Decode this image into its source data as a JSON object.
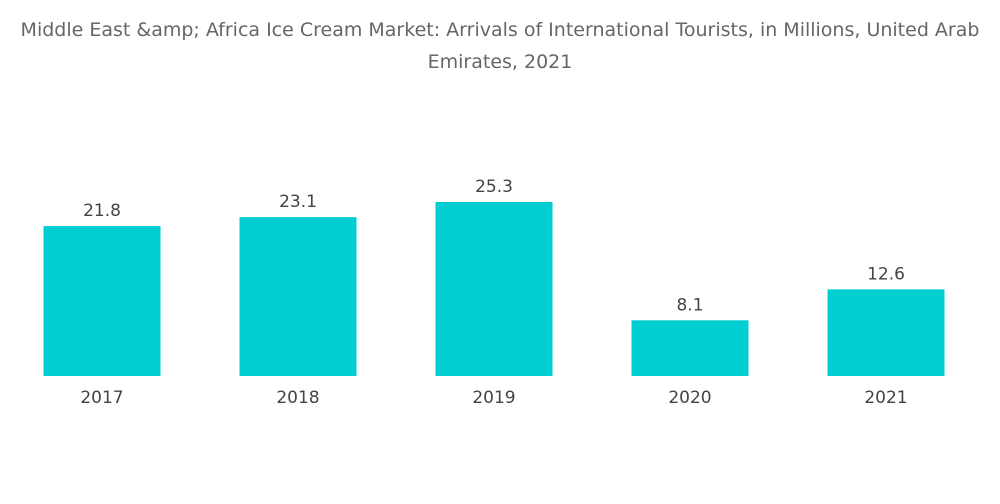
{
  "chart_data": {
    "type": "bar",
    "title": "Middle East &amp; Africa Ice Cream Market: Arrivals of International Tourists, in Millions, United Arab Emirates, 2021",
    "xlabel": "",
    "ylabel": "",
    "categories": [
      "2017",
      "2018",
      "2019",
      "2020",
      "2021"
    ],
    "values": [
      21.8,
      23.1,
      25.3,
      8.1,
      12.6
    ],
    "ylim": [
      0,
      25.3
    ],
    "grid": false,
    "legend": "none",
    "colors": {
      "bar": "#00CED1",
      "title": "#666666",
      "labels": "#444444"
    }
  }
}
